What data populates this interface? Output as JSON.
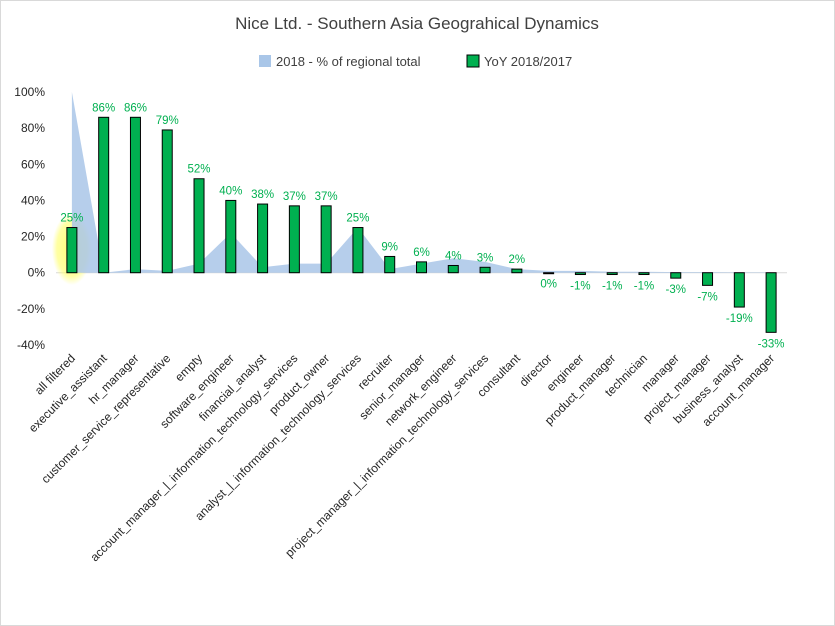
{
  "chart_data": {
    "type": "bar",
    "title": "Nice Ltd. - Southern Asia Geograhical Dynamics",
    "xlabel": "",
    "ylabel": "",
    "ylim": [
      -40,
      100
    ],
    "yticks": [
      "100%",
      "80%",
      "60%",
      "40%",
      "20%",
      "0%",
      "-20%",
      "-40%"
    ],
    "ytick_values": [
      100,
      80,
      60,
      40,
      20,
      0,
      -20,
      -40
    ],
    "grid": true,
    "legend_position": "top",
    "highlight_category": "all filtered",
    "categories": [
      "all filtered",
      "executive_assistant",
      "hr_manager",
      "customer_service_representative",
      "empty",
      "software_engineer",
      "financial_analyst",
      "account_manager_|_information_technology_services",
      "product_owner",
      "analyst_|_information_technology_services",
      "recruiter",
      "senior_manager",
      "network_engineer",
      "project_manager_|_information_technology_services",
      "consultant",
      "director",
      "engineer",
      "product_manager",
      "technician",
      "manager",
      "project_manager",
      "business_analyst",
      "account_manager"
    ],
    "series": [
      {
        "name": "2018 - % of regional total",
        "type": "area",
        "color": "#a9c6e8",
        "values": [
          100,
          0,
          2,
          1,
          5,
          22,
          3,
          5,
          5,
          25,
          2,
          5,
          8,
          6,
          2,
          1,
          1,
          0.5,
          0.5,
          0.3,
          0.3,
          0.2,
          0.2
        ]
      },
      {
        "name": "YoY 2018/2017",
        "type": "bar",
        "color": "#00b050",
        "border": "#000000",
        "values": [
          25,
          86,
          86,
          79,
          52,
          40,
          38,
          37,
          37,
          25,
          9,
          6,
          4,
          3,
          2,
          0,
          -1,
          -1,
          -1,
          -3,
          -7,
          -19,
          -33
        ],
        "labels": [
          "25%",
          "86%",
          "86%",
          "79%",
          "52%",
          "40%",
          "38%",
          "37%",
          "37%",
          "25%",
          "9%",
          "6%",
          "4%",
          "3%",
          "2%",
          "0%",
          "-1%",
          "-1%",
          "-1%",
          "-3%",
          "-7%",
          "-19%",
          "-33%"
        ],
        "label_color": "#00b050"
      }
    ]
  },
  "colors": {
    "area": "#a9c6e8",
    "bar": "#00b050",
    "bar_border": "#000000",
    "highlight": "#ffff66",
    "gridline": "#d9d9d9",
    "axis_text": "#262626",
    "title_text": "#404040"
  }
}
